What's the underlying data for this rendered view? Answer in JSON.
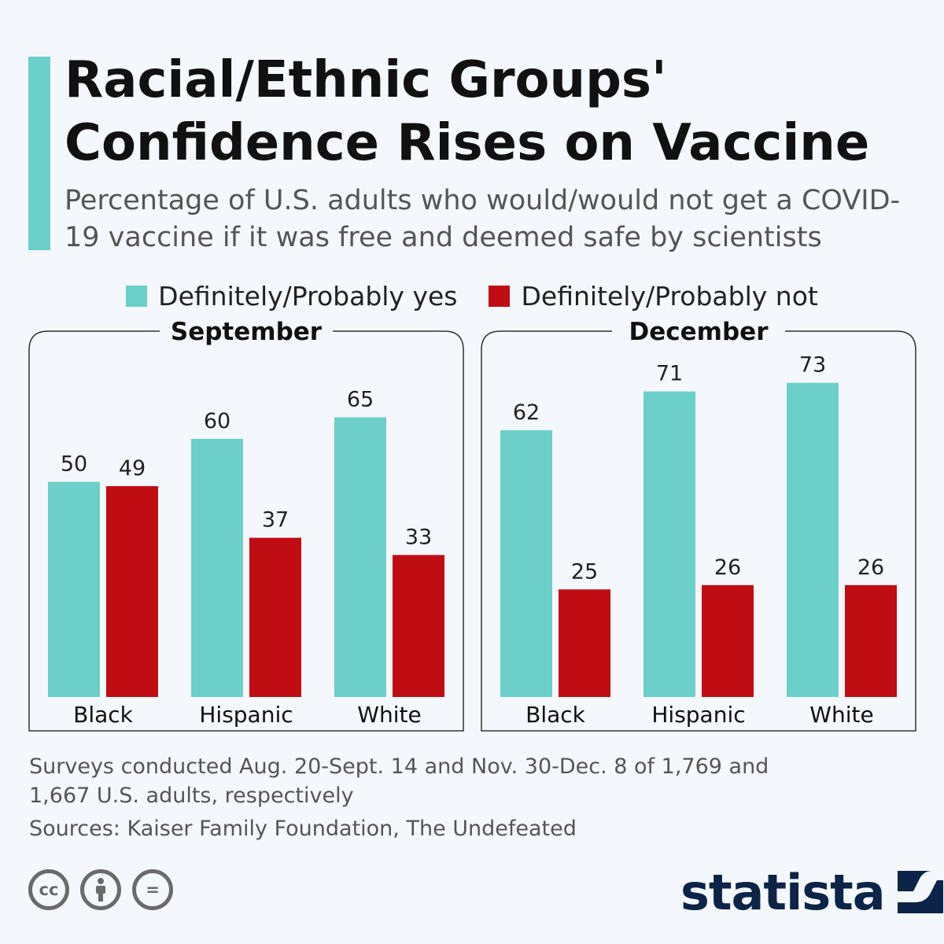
{
  "header": {
    "title": "Racial/Ethnic Groups' Confidence Rises on Vaccine",
    "subtitle": "Percentage of U.S. adults who would/would not get a COVID-19 vaccine if it was free and deemed safe by scientists"
  },
  "legend": [
    {
      "label": "Definitely/Probably yes",
      "color": "#6ccfca"
    },
    {
      "label": "Definitely/Probably not",
      "color": "#c00d14"
    }
  ],
  "chart_data": [
    {
      "type": "bar",
      "title": "September",
      "categories": [
        "Black",
        "Hispanic",
        "White"
      ],
      "series": [
        {
          "name": "Definitely/Probably yes",
          "values": [
            50,
            60,
            65
          ],
          "color": "#6ccfca"
        },
        {
          "name": "Definitely/Probably not",
          "values": [
            49,
            37,
            33
          ],
          "color": "#c00d14"
        }
      ],
      "ylim": [
        0,
        100
      ],
      "grid": false
    },
    {
      "type": "bar",
      "title": "December",
      "categories": [
        "Black",
        "Hispanic",
        "White"
      ],
      "series": [
        {
          "name": "Definitely/Probably yes",
          "values": [
            62,
            71,
            73
          ],
          "color": "#6ccfca"
        },
        {
          "name": "Definitely/Probably not",
          "values": [
            25,
            26,
            26
          ],
          "color": "#c00d14"
        }
      ],
      "ylim": [
        0,
        100
      ],
      "grid": false
    }
  ],
  "footer": {
    "note": "Surveys conducted Aug. 20-Sept. 14 and Nov. 30-Dec. 8 of 1,769 and 1,667 U.S. adults, respectively",
    "sources": "Sources: Kaiser Family Foundation, The Undefeated",
    "license_icons": [
      {
        "icon": "creative-commons-icon",
        "label": "cc"
      },
      {
        "icon": "attribution-icon",
        "label": ""
      },
      {
        "icon": "no-derivatives-icon",
        "label": "="
      }
    ],
    "brand": "statista"
  }
}
